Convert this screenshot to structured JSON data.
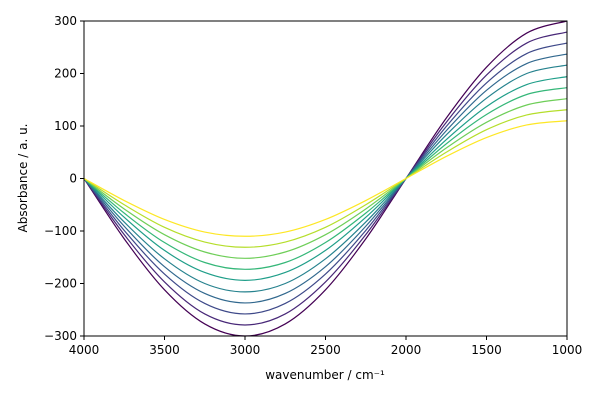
{
  "chart_data": {
    "type": "line",
    "xlabel": "wavenumber / cm⁻¹",
    "ylabel": "Absorbance / a. u.",
    "x": [
      4000,
      3750,
      3500,
      3250,
      3000,
      2750,
      2500,
      2250,
      2000,
      1750,
      1500,
      1250,
      1000
    ],
    "xlim": [
      4000,
      1000
    ],
    "xticks": [
      4000,
      3500,
      3000,
      2500,
      2000,
      1500,
      1000
    ],
    "ylim": [
      -300,
      300
    ],
    "yticks": [
      {
        "value": -300,
        "label": "−300"
      },
      {
        "value": -200,
        "label": "−200"
      },
      {
        "value": -100,
        "label": "−100"
      },
      0,
      100,
      200,
      300
    ],
    "series": [
      {
        "color": "#440154",
        "values": [
          0,
          -115,
          -212,
          -277,
          -300,
          -277,
          -212,
          -115,
          0,
          115,
          212,
          277,
          300
        ]
      },
      {
        "color": "#482878",
        "values": [
          0,
          -107,
          -197,
          -258,
          -279,
          -258,
          -197,
          -107,
          0,
          107,
          197,
          258,
          279
        ]
      },
      {
        "color": "#3e4989",
        "values": [
          0,
          -99,
          -182,
          -238,
          -258,
          -238,
          -182,
          -99,
          0,
          99,
          182,
          238,
          258
        ]
      },
      {
        "color": "#31688e",
        "values": [
          0,
          -91,
          -168,
          -219,
          -237,
          -219,
          -168,
          -91,
          0,
          91,
          168,
          219,
          237
        ]
      },
      {
        "color": "#26828e",
        "values": [
          0,
          -83,
          -153,
          -200,
          -216,
          -200,
          -153,
          -83,
          0,
          83,
          153,
          200,
          216
        ]
      },
      {
        "color": "#1f9e89",
        "values": [
          0,
          -74,
          -137,
          -179,
          -194,
          -179,
          -137,
          -74,
          0,
          74,
          137,
          179,
          194
        ]
      },
      {
        "color": "#35b779",
        "values": [
          0,
          -66,
          -122,
          -160,
          -173,
          -160,
          -122,
          -66,
          0,
          66,
          122,
          160,
          173
        ]
      },
      {
        "color": "#6ece58",
        "values": [
          0,
          -58,
          -107,
          -140,
          -152,
          -140,
          -107,
          -58,
          0,
          58,
          107,
          140,
          152
        ]
      },
      {
        "color": "#b5de2b",
        "values": [
          0,
          -50,
          -93,
          -121,
          -131,
          -121,
          -93,
          -50,
          0,
          50,
          93,
          121,
          131
        ]
      },
      {
        "color": "#fde725",
        "values": [
          0,
          -42,
          -78,
          -102,
          -110,
          -102,
          -78,
          -42,
          0,
          42,
          78,
          102,
          110
        ]
      }
    ]
  }
}
